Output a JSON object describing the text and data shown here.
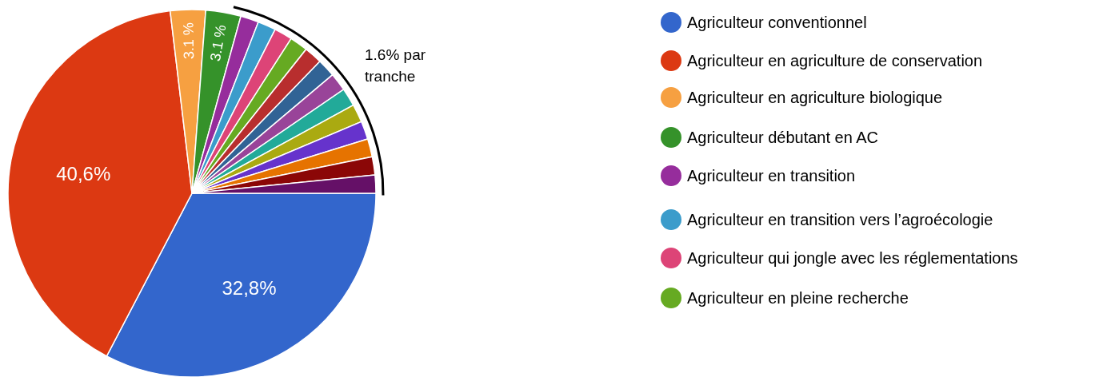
{
  "chart_data": {
    "type": "pie",
    "categories": [
      "Agriculteur conventionnel",
      "Agriculteur en agriculture de conservation",
      "Agriculteur en agriculture biologique",
      "Agriculteur débutant en AC",
      "Agriculteur en transition",
      "Agriculteur en transition vers l’agroécologie",
      "Agriculteur qui jongle avec les réglementations",
      "Agriculteur en pleine recherche",
      null,
      null,
      null,
      null,
      null,
      null,
      null,
      null,
      null
    ],
    "values": [
      32.8,
      40.6,
      3.1,
      3.1,
      1.6,
      1.6,
      1.6,
      1.6,
      1.6,
      1.6,
      1.6,
      1.6,
      1.6,
      1.6,
      1.6,
      1.6,
      1.6
    ],
    "colors": [
      "#3366cc",
      "#dc3912",
      "#f6a041",
      "#35922a",
      "#962d9c",
      "#3b9ccb",
      "#dd4477",
      "#66aa22",
      "#b82e2e",
      "#316395",
      "#994499",
      "#22aa99",
      "#aaaa11",
      "#6633cc",
      "#e67300",
      "#8b0707",
      "#651067"
    ],
    "value_labels": [
      "32,8%",
      "40,6%",
      "3.1 %",
      "3.1 %",
      null,
      null,
      null,
      null,
      null,
      null,
      null,
      null,
      null,
      null,
      null,
      null,
      null
    ],
    "annotations": [
      "1.6% par tranche"
    ],
    "legend": "right"
  }
}
